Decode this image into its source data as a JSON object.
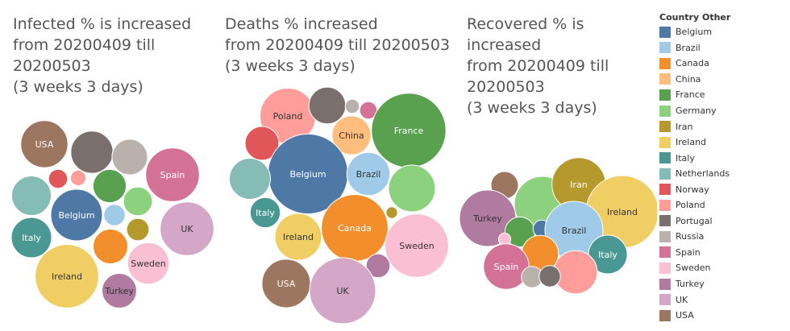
{
  "legend": {
    "title": "Country Other",
    "items": [
      {
        "name": "Belgium",
        "color": "#4e79a7"
      },
      {
        "name": "Brazil",
        "color": "#a0cbe8"
      },
      {
        "name": "Canada",
        "color": "#f28e2b"
      },
      {
        "name": "China",
        "color": "#ffbe7d"
      },
      {
        "name": "France",
        "color": "#59a14f"
      },
      {
        "name": "Germany",
        "color": "#8cd17d"
      },
      {
        "name": "Iran",
        "color": "#b6992d"
      },
      {
        "name": "Ireland",
        "color": "#f1ce63"
      },
      {
        "name": "Italy",
        "color": "#499894"
      },
      {
        "name": "Netherlands",
        "color": "#86bcb6"
      },
      {
        "name": "Norway",
        "color": "#e15759"
      },
      {
        "name": "Poland",
        "color": "#ff9d9a"
      },
      {
        "name": "Portugal",
        "color": "#79706e"
      },
      {
        "name": "Russia",
        "color": "#bab0ac"
      },
      {
        "name": "Spain",
        "color": "#d37295"
      },
      {
        "name": "Sweden",
        "color": "#fabfd2"
      },
      {
        "name": "Turkey",
        "color": "#b07aa1"
      },
      {
        "name": "UK",
        "color": "#d4a6c8"
      },
      {
        "name": "USA",
        "color": "#9d7660"
      }
    ]
  },
  "chart_data": [
    {
      "type": "bubble",
      "title_lines": [
        "Infected % is increased",
        "from 20200409 till",
        "20200503",
        "(3 weeks 3 days)"
      ],
      "bubbles": [
        {
          "country": "USA",
          "label": "USA",
          "size": 1.85
        },
        {
          "country": "Portugal",
          "label": "",
          "size": 1.48
        },
        {
          "country": "Russia",
          "label": "",
          "size": 1.06
        },
        {
          "country": "Spain",
          "label": "Spain",
          "size": 2.4
        },
        {
          "country": "Norway",
          "label": "",
          "size": 0.3
        },
        {
          "country": "Poland",
          "label": "",
          "size": 0.2
        },
        {
          "country": "France",
          "label": "",
          "size": 0.92
        },
        {
          "country": "Netherlands",
          "label": "",
          "size": 1.3
        },
        {
          "country": "Belgium",
          "label": "Belgium",
          "size": 2.22
        },
        {
          "country": "Germany",
          "label": "",
          "size": 0.69
        },
        {
          "country": "Brazil",
          "label": "",
          "size": 0.38
        },
        {
          "country": "UK",
          "label": "UK",
          "size": 2.4
        },
        {
          "country": "Italy",
          "label": "Italy",
          "size": 1.35
        },
        {
          "country": "Canada",
          "label": "",
          "size": 1.0
        },
        {
          "country": "Iran",
          "label": "",
          "size": 0.42
        },
        {
          "country": "Ireland",
          "label": "Ireland",
          "size": 3.36
        },
        {
          "country": "Sweden",
          "label": "Sweden",
          "size": 1.44
        },
        {
          "country": "Turkey",
          "label": "Turkey",
          "size": 1.0
        }
      ]
    },
    {
      "type": "bubble",
      "title_lines": [
        "Deaths % increased",
        "from 20200409 till 20200503",
        "(3 weeks 3 days)"
      ],
      "bubbles": [
        {
          "country": "Poland",
          "label": "Poland",
          "size": 0.92
        },
        {
          "country": "Portugal",
          "label": "",
          "size": 0.4
        },
        {
          "country": "Russia",
          "label": "",
          "size": 0.06
        },
        {
          "country": "Spain",
          "label": "",
          "size": 0.09
        },
        {
          "country": "France",
          "label": "France",
          "size": 1.65
        },
        {
          "country": "China",
          "label": "China",
          "size": 0.45
        },
        {
          "country": "Norway",
          "label": "",
          "size": 0.34
        },
        {
          "country": "Belgium",
          "label": "Belgium",
          "size": 1.9
        },
        {
          "country": "Brazil",
          "label": "Brazil",
          "size": 0.55
        },
        {
          "country": "Netherlands",
          "label": "",
          "size": 0.5
        },
        {
          "country": "Germany",
          "label": "",
          "size": 0.65
        },
        {
          "country": "Italy",
          "label": "Italy",
          "size": 0.27
        },
        {
          "country": "Iran",
          "label": "",
          "size": 0.04
        },
        {
          "country": "Ireland",
          "label": "Ireland",
          "size": 0.65
        },
        {
          "country": "Canada",
          "label": "Canada",
          "size": 1.32
        },
        {
          "country": "Sweden",
          "label": "Sweden",
          "size": 1.2
        },
        {
          "country": "Turkey",
          "label": "",
          "size": 0.17
        },
        {
          "country": "USA",
          "label": "USA",
          "size": 0.7
        },
        {
          "country": "UK",
          "label": "UK",
          "size": 1.3
        }
      ]
    },
    {
      "type": "bubble",
      "title_lines": [
        "Recovered % is",
        "increased",
        "from 20200409 till",
        "20200503",
        "(3 weeks 3 days)"
      ],
      "bubbles": [
        {
          "country": "USA",
          "label": "",
          "size": 0.2
        },
        {
          "country": "Germany",
          "label": "",
          "size": 0.85
        },
        {
          "country": "Iran",
          "label": "Iran",
          "size": 0.77
        },
        {
          "country": "Turkey",
          "label": "Turkey",
          "size": 0.85
        },
        {
          "country": "Ireland",
          "label": "Ireland",
          "size": 1.4
        },
        {
          "country": "France",
          "label": "",
          "size": 0.24
        },
        {
          "country": "Belgium",
          "label": "",
          "size": 0.08
        },
        {
          "country": "Brazil",
          "label": "Brazil",
          "size": 0.9
        },
        {
          "country": "Sweden",
          "label": "",
          "size": 0.04
        },
        {
          "country": "Canada",
          "label": "",
          "size": 0.36
        },
        {
          "country": "Italy",
          "label": "Italy",
          "size": 0.4
        },
        {
          "country": "Spain",
          "label": "Spain",
          "size": 0.55
        },
        {
          "country": "Poland",
          "label": "",
          "size": 0.5
        },
        {
          "country": "Russia",
          "label": "",
          "size": 0.12
        },
        {
          "country": "Portugal",
          "label": "",
          "size": 0.12
        }
      ]
    }
  ]
}
